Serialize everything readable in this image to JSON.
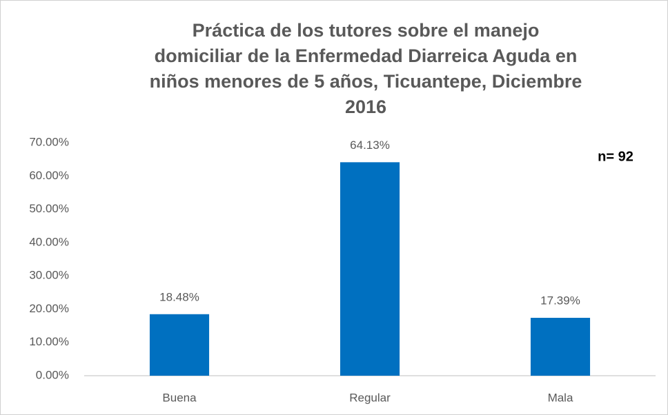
{
  "chart_data": {
    "type": "bar",
    "title": [
      "Práctica de los tutores  sobre el manejo",
      "domiciliar de la Enfermedad Diarreica Aguda en",
      "niños menores de 5 años, Ticuantepe, Diciembre",
      "2016"
    ],
    "categories": [
      "Buena",
      "Regular",
      "Mala"
    ],
    "values": [
      18.48,
      64.13,
      17.39
    ],
    "value_labels": [
      "18.48%",
      "64.13%",
      "17.39%"
    ],
    "color": "#0070c0",
    "ylim": [
      0,
      70
    ],
    "yticks": [
      {
        "value": 0,
        "label": "0.00%"
      },
      {
        "value": 10,
        "label": "10.00%"
      },
      {
        "value": 20,
        "label": "20.00%"
      },
      {
        "value": 30,
        "label": "30.00%"
      },
      {
        "value": 40,
        "label": "40.00%"
      },
      {
        "value": 50,
        "label": "50.00%"
      },
      {
        "value": 60,
        "label": "60.00%"
      },
      {
        "value": 70,
        "label": "70.00%"
      }
    ],
    "grid": false,
    "annotation": "n= 92"
  }
}
